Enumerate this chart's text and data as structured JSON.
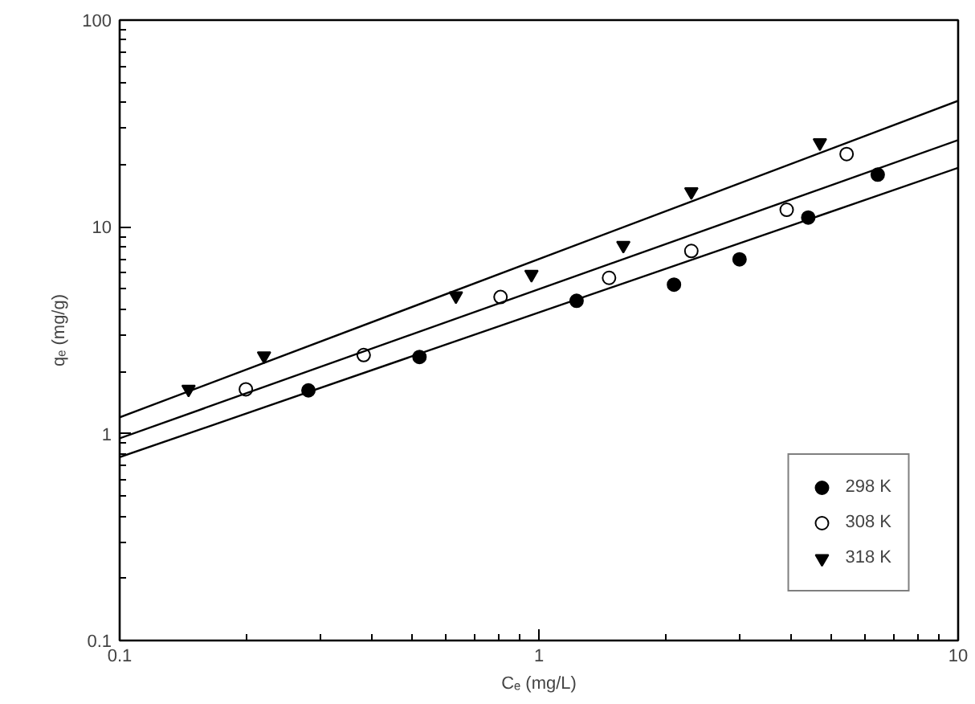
{
  "chart_data": {
    "type": "scatter",
    "xlabel": "Cₑ (mg/L)",
    "ylabel": "qₑ (mg/g)",
    "log": "xy",
    "grid": false,
    "legend": "bottom right",
    "xlim": [
      0.1,
      10
    ],
    "ylim": [
      0.1,
      100
    ],
    "xticks": [
      {
        "value": 0.1,
        "label": "0.1"
      },
      1,
      10,
      {
        "value": 0.2,
        "label": null
      },
      {
        "value": 0.3,
        "label": null
      },
      {
        "value": 0.4,
        "label": null
      },
      {
        "value": 0.5,
        "label": null
      },
      {
        "value": 0.6,
        "label": null
      },
      {
        "value": 0.7,
        "label": null
      },
      {
        "value": 0.8,
        "label": null
      },
      {
        "value": 0.9,
        "label": null
      },
      {
        "value": 2,
        "label": null
      },
      {
        "value": 3,
        "label": null
      },
      {
        "value": 4,
        "label": null
      },
      {
        "value": 5,
        "label": null
      },
      {
        "value": 6,
        "label": null
      },
      {
        "value": 7,
        "label": null
      },
      {
        "value": 8,
        "label": null
      },
      {
        "value": 9,
        "label": null
      }
    ],
    "yticks": [
      {
        "value": 0.1,
        "label": "0.1"
      },
      1,
      10,
      100,
      {
        "value": 0.2,
        "label": null
      },
      {
        "value": 0.3,
        "label": null
      },
      {
        "value": 0.4,
        "label": null
      },
      {
        "value": 0.5,
        "label": null
      },
      {
        "value": 0.6,
        "label": null
      },
      {
        "value": 0.7,
        "label": null
      },
      {
        "value": 0.8,
        "label": null
      },
      {
        "value": 0.9,
        "label": null
      },
      {
        "value": 2,
        "label": null
      },
      {
        "value": 3,
        "label": null
      },
      {
        "value": 4,
        "label": null
      },
      {
        "value": 5,
        "label": null
      },
      {
        "value": 6,
        "label": null
      },
      {
        "value": 7,
        "label": null
      },
      {
        "value": 8,
        "label": null
      },
      {
        "value": 9,
        "label": null
      },
      {
        "value": 20,
        "label": null
      },
      {
        "value": 30,
        "label": null
      },
      {
        "value": 40,
        "label": null
      },
      {
        "value": 50,
        "label": null
      },
      {
        "value": 60,
        "label": null
      },
      {
        "value": 70,
        "label": null
      },
      {
        "value": 80,
        "label": null
      },
      {
        "value": 90,
        "label": null
      }
    ],
    "series": [
      {
        "name": "298 K",
        "marker": "circle",
        "color": "#000000",
        "x": [
          0.282,
          0.519,
          1.23,
          2.1,
          3.01,
          4.39,
          6.43
        ],
        "values": [
          1.62,
          2.35,
          4.39,
          5.26,
          6.97,
          11.1,
          17.9
        ]
      },
      {
        "name": "308 K",
        "marker": "circle",
        "color": "#ffffff",
        "x": [
          0.2,
          0.382,
          0.81,
          1.47,
          2.31,
          3.9,
          5.42
        ],
        "values": [
          1.64,
          2.4,
          4.58,
          5.67,
          7.65,
          12.1,
          22.5
        ]
      },
      {
        "name": "318 K",
        "marker": "triangle",
        "color": "#000000",
        "x": [
          0.146,
          0.221,
          0.634,
          0.96,
          1.59,
          2.31,
          4.68
        ],
        "values": [
          1.64,
          2.38,
          4.64,
          5.89,
          8.14,
          14.8,
          25.5
        ]
      },
      {
        "type": "line",
        "line_style": "solid",
        "color": "#000000",
        "x": [
          0.1,
          10
        ],
        "values": [
          0.77,
          19.3
        ]
      },
      {
        "type": "line",
        "line_style": "solid",
        "color": "#000000",
        "x": [
          0.1,
          10
        ],
        "values": [
          0.95,
          26.3
        ]
      },
      {
        "type": "line",
        "line_style": "solid",
        "color": "#000000",
        "x": [
          0.1,
          10
        ],
        "values": [
          1.2,
          40.7
        ]
      }
    ]
  }
}
